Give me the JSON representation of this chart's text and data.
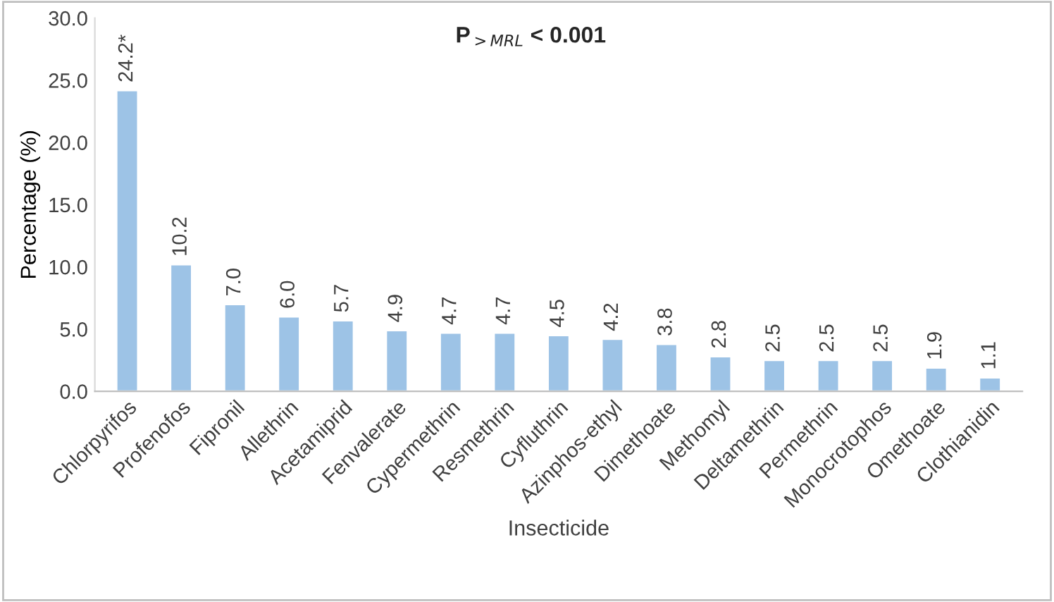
{
  "chart_data": {
    "type": "bar",
    "xlabel": "Insecticide",
    "ylabel": "Percentage (%)",
    "annotations": [
      "P$_{>MRL}$ < 0.001"
    ],
    "categories": [
      "Chlorpyrifos",
      "Profenofos",
      "Fipronil",
      "Allethrin",
      "Acetamiprid",
      "Fenvalerate",
      "Cypermethrin",
      "Resmethrin",
      "Cyfluthrin",
      "Azinphos-ethyl",
      "Dimethoate",
      "Methomyl",
      "Deltamethrin",
      "Permethrin",
      "Monocrotophos",
      "Omethoate",
      "Clothianidin"
    ],
    "values": [
      24.2,
      10.2,
      7.0,
      6.0,
      5.7,
      4.9,
      4.7,
      4.7,
      4.5,
      4.2,
      3.8,
      2.8,
      2.5,
      2.5,
      2.5,
      1.9,
      1.1
    ],
    "value_labels": [
      "24.2*",
      "10.2",
      "7.0",
      "6.0",
      "5.7",
      "4.9",
      "4.7",
      "4.7",
      "4.5",
      "4.2",
      "3.8",
      "2.8",
      "2.5",
      "2.5",
      "2.5",
      "1.9",
      "1.1"
    ],
    "color": "#9dc3e6",
    "ylim": [
      0,
      30
    ],
    "yticks": [
      {
        "value": 0,
        "label": "0.0"
      },
      {
        "value": 5,
        "label": "5.0"
      },
      {
        "value": 10,
        "label": "10.0"
      },
      {
        "value": 15,
        "label": "15.0"
      },
      {
        "value": 20,
        "label": "20.0"
      },
      {
        "value": 25,
        "label": "25.0"
      },
      {
        "value": 30,
        "label": "30.0"
      }
    ],
    "grid": false,
    "legend": false
  }
}
